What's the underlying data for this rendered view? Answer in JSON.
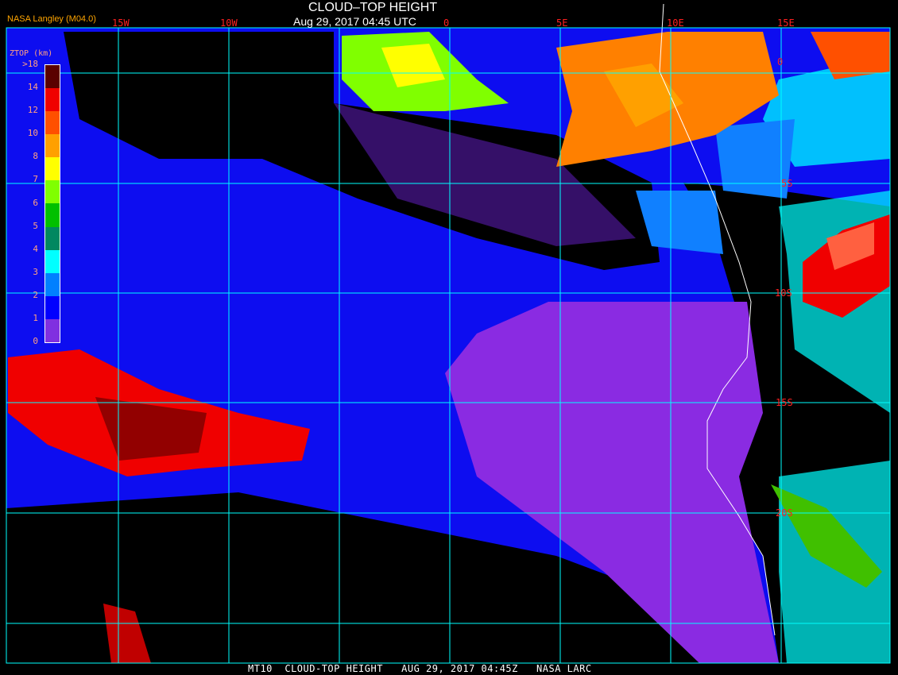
{
  "header": {
    "title": "CLOUD–TOP HEIGHT",
    "datetime": "Aug 29, 2017 04:45 UTC",
    "provider": "NASA Langley (M04.0)"
  },
  "grid": {
    "longitude_labels": [
      "15W",
      "10W",
      "5W",
      "0",
      "5E",
      "10E",
      "15E"
    ],
    "latitude_labels": [
      "0",
      "5S",
      "10S",
      "15S",
      "20S"
    ]
  },
  "legend": {
    "title": "ZTOP (km)",
    "labels": [
      ">18",
      "14",
      "12",
      "10",
      "8",
      "7",
      "6",
      "5",
      "4",
      "3",
      "2",
      "1",
      "0"
    ],
    "colors": [
      "#5a0000",
      "#5a0000",
      "#f00000",
      "#ff5000",
      "#ffa000",
      "#ffff00",
      "#80ff00",
      "#00c000",
      "#008860",
      "#00ffff",
      "#0080ff",
      "#0000ff",
      "#8030e0"
    ]
  },
  "footer": {
    "caption": "MT10  CLOUD-TOP HEIGHT   AUG 29, 2017 04:45Z   NASA LARC"
  }
}
